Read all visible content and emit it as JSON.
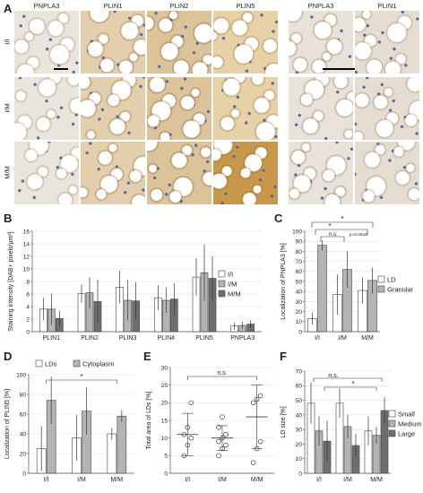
{
  "panels": {
    "A": "A",
    "B": "B",
    "C": "C",
    "D": "D",
    "E": "E",
    "F": "F"
  },
  "micrograph": {
    "columns": [
      "PNPLA3",
      "PLIN1",
      "PLIN2",
      "PLIN5",
      "PNPLA3",
      "PLIN1"
    ],
    "rows": [
      "I/I",
      "I/M",
      "M/M"
    ]
  },
  "chart_data": [
    {
      "id": "B",
      "type": "bar",
      "ylabel": "Staining intensity [DAB+ pixels/µm²]",
      "categories": [
        "PLIN1",
        "PLIN2",
        "PLIN3",
        "PLIN4",
        "PLIN5",
        "PNPLA3"
      ],
      "ylim": [
        0,
        16
      ],
      "yticks": [
        0,
        2,
        4,
        6,
        8,
        10,
        12,
        14,
        16
      ],
      "legend": [
        "I/I",
        "I/M",
        "M/M"
      ],
      "series": [
        {
          "name": "I/I",
          "values": [
            3.6,
            6.1,
            7.1,
            5.4,
            8.7,
            0.9
          ]
        },
        {
          "name": "I/M",
          "values": [
            3.6,
            6.2,
            5.0,
            5.0,
            9.4,
            1.0
          ]
        },
        {
          "name": "M/M",
          "values": [
            2.1,
            4.8,
            4.9,
            5.2,
            8.5,
            1.2
          ]
        }
      ],
      "err": [
        [
          1.8,
          1.5,
          2.6,
          2.0,
          3.0,
          0.6
        ],
        [
          2.5,
          2.5,
          3.2,
          2.0,
          4.5,
          0.6
        ],
        [
          1.2,
          3.5,
          3.0,
          2.5,
          3.5,
          0.6
        ]
      ]
    },
    {
      "id": "C",
      "type": "bar",
      "ylabel": "Localization of PNPLA3 [%]",
      "categories": [
        "I/I",
        "I/M",
        "M/M"
      ],
      "ylim": [
        0,
        100
      ],
      "yticks": [
        0,
        10,
        20,
        30,
        40,
        50,
        60,
        70,
        80,
        90,
        100
      ],
      "legend": [
        "LD",
        "Granular"
      ],
      "series": [
        {
          "name": "LD",
          "values": [
            13,
            37,
            41
          ]
        },
        {
          "name": "Granular",
          "values": [
            86,
            62,
            51
          ]
        }
      ],
      "err": [
        [
          6,
          20,
          13
        ],
        [
          5,
          18,
          13
        ]
      ],
      "sig": [
        "*",
        "*",
        "n.s.",
        "p=0.0618"
      ]
    },
    {
      "id": "D",
      "type": "bar",
      "ylabel": "Localization of PLIN5 [%]",
      "categories": [
        "I/I",
        "I/M",
        "M/M"
      ],
      "ylim": [
        0,
        100
      ],
      "yticks": [
        0,
        20,
        40,
        60,
        80,
        100
      ],
      "legend": [
        "LDs",
        "Cytoplasm"
      ],
      "series": [
        {
          "name": "LDs",
          "values": [
            25,
            36,
            40
          ]
        },
        {
          "name": "Cytoplasm",
          "values": [
            74,
            63,
            58
          ]
        }
      ],
      "err": [
        [
          23,
          23,
          6
        ],
        [
          24,
          24,
          6
        ]
      ],
      "sig": [
        "*"
      ]
    },
    {
      "id": "E",
      "type": "scatter",
      "ylabel": "Total area of LDs [%]",
      "categories": [
        "I/I",
        "I/M",
        "M/M"
      ],
      "ylim": [
        0,
        30
      ],
      "yticks": [
        0,
        5,
        10,
        15,
        20,
        25,
        30
      ],
      "points": [
        [
          5,
          8,
          10,
          11,
          13,
          20
        ],
        [
          5,
          7,
          8,
          9,
          10,
          11,
          13,
          16
        ],
        [
          3,
          7,
          9,
          20,
          21,
          22
        ]
      ],
      "mean": [
        11,
        10,
        16
      ],
      "sd": [
        6,
        3.5,
        9
      ],
      "sig": [
        "n.s."
      ]
    },
    {
      "id": "F",
      "type": "bar",
      "ylabel": "LD size [%]",
      "categories": [
        "I/I",
        "I/M",
        "M/M"
      ],
      "ylim": [
        0,
        70
      ],
      "yticks": [
        0,
        10,
        20,
        30,
        40,
        50,
        60,
        70
      ],
      "legend": [
        "Small",
        "Medium",
        "Large"
      ],
      "series": [
        {
          "name": "Small",
          "values": [
            48,
            48,
            29
          ]
        },
        {
          "name": "Medium",
          "values": [
            29,
            32,
            26
          ]
        },
        {
          "name": "Large",
          "values": [
            22,
            19,
            43
          ]
        }
      ],
      "err": [
        [
          14,
          10,
          10
        ],
        [
          10,
          8,
          6
        ],
        [
          14,
          8,
          9
        ]
      ],
      "sig": [
        "n.s.",
        "*"
      ]
    }
  ],
  "colors": {
    "s1": "#ffffff",
    "s2": "#b4b4b4",
    "s3": "#6e6e6e",
    "stroke": "#444444"
  }
}
